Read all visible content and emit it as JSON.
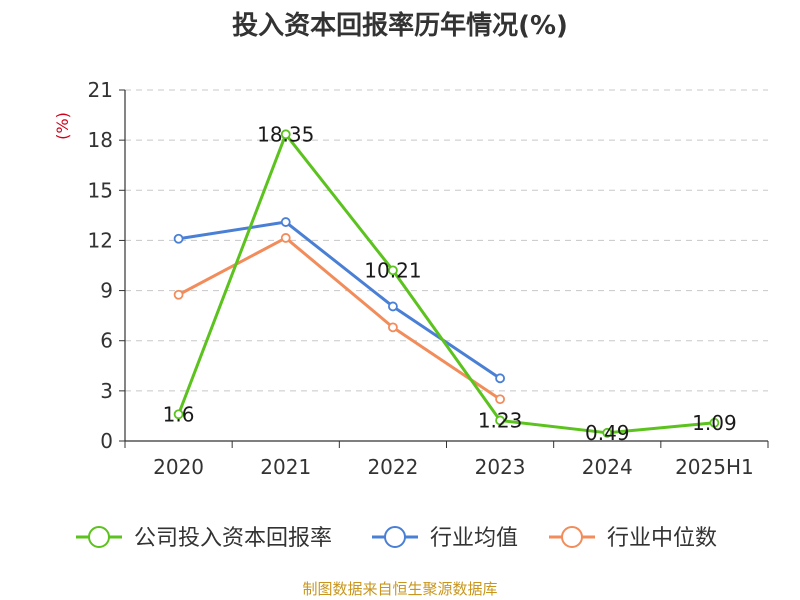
{
  "chart_data": {
    "type": "line",
    "title": "投入资本回报率历年情况(%)",
    "ylabel": "(%)",
    "xlabel": "",
    "categories": [
      "2020",
      "2021",
      "2022",
      "2023",
      "2024",
      "2025H1"
    ],
    "ylim": [
      0,
      21
    ],
    "yticks": [
      0,
      3,
      6,
      9,
      12,
      15,
      18,
      21
    ],
    "grid": true,
    "legend_position": "bottom",
    "series": [
      {
        "name": "公司投入资本回报率",
        "color": "#5bc21e",
        "values": [
          1.6,
          18.35,
          10.21,
          1.23,
          0.49,
          1.09
        ],
        "data_labels": [
          "1.6",
          "18.35",
          "10.21",
          "1.23",
          "0.49",
          "1.09"
        ]
      },
      {
        "name": "行业均值",
        "color": "#4a7fd6",
        "values": [
          12.1,
          13.1,
          8.05,
          3.75,
          null,
          null
        ]
      },
      {
        "name": "行业中位数",
        "color": "#f28c5a",
        "values": [
          8.75,
          12.15,
          6.8,
          2.5,
          null,
          null
        ]
      }
    ]
  },
  "source": "制图数据来自恒生聚源数据库"
}
